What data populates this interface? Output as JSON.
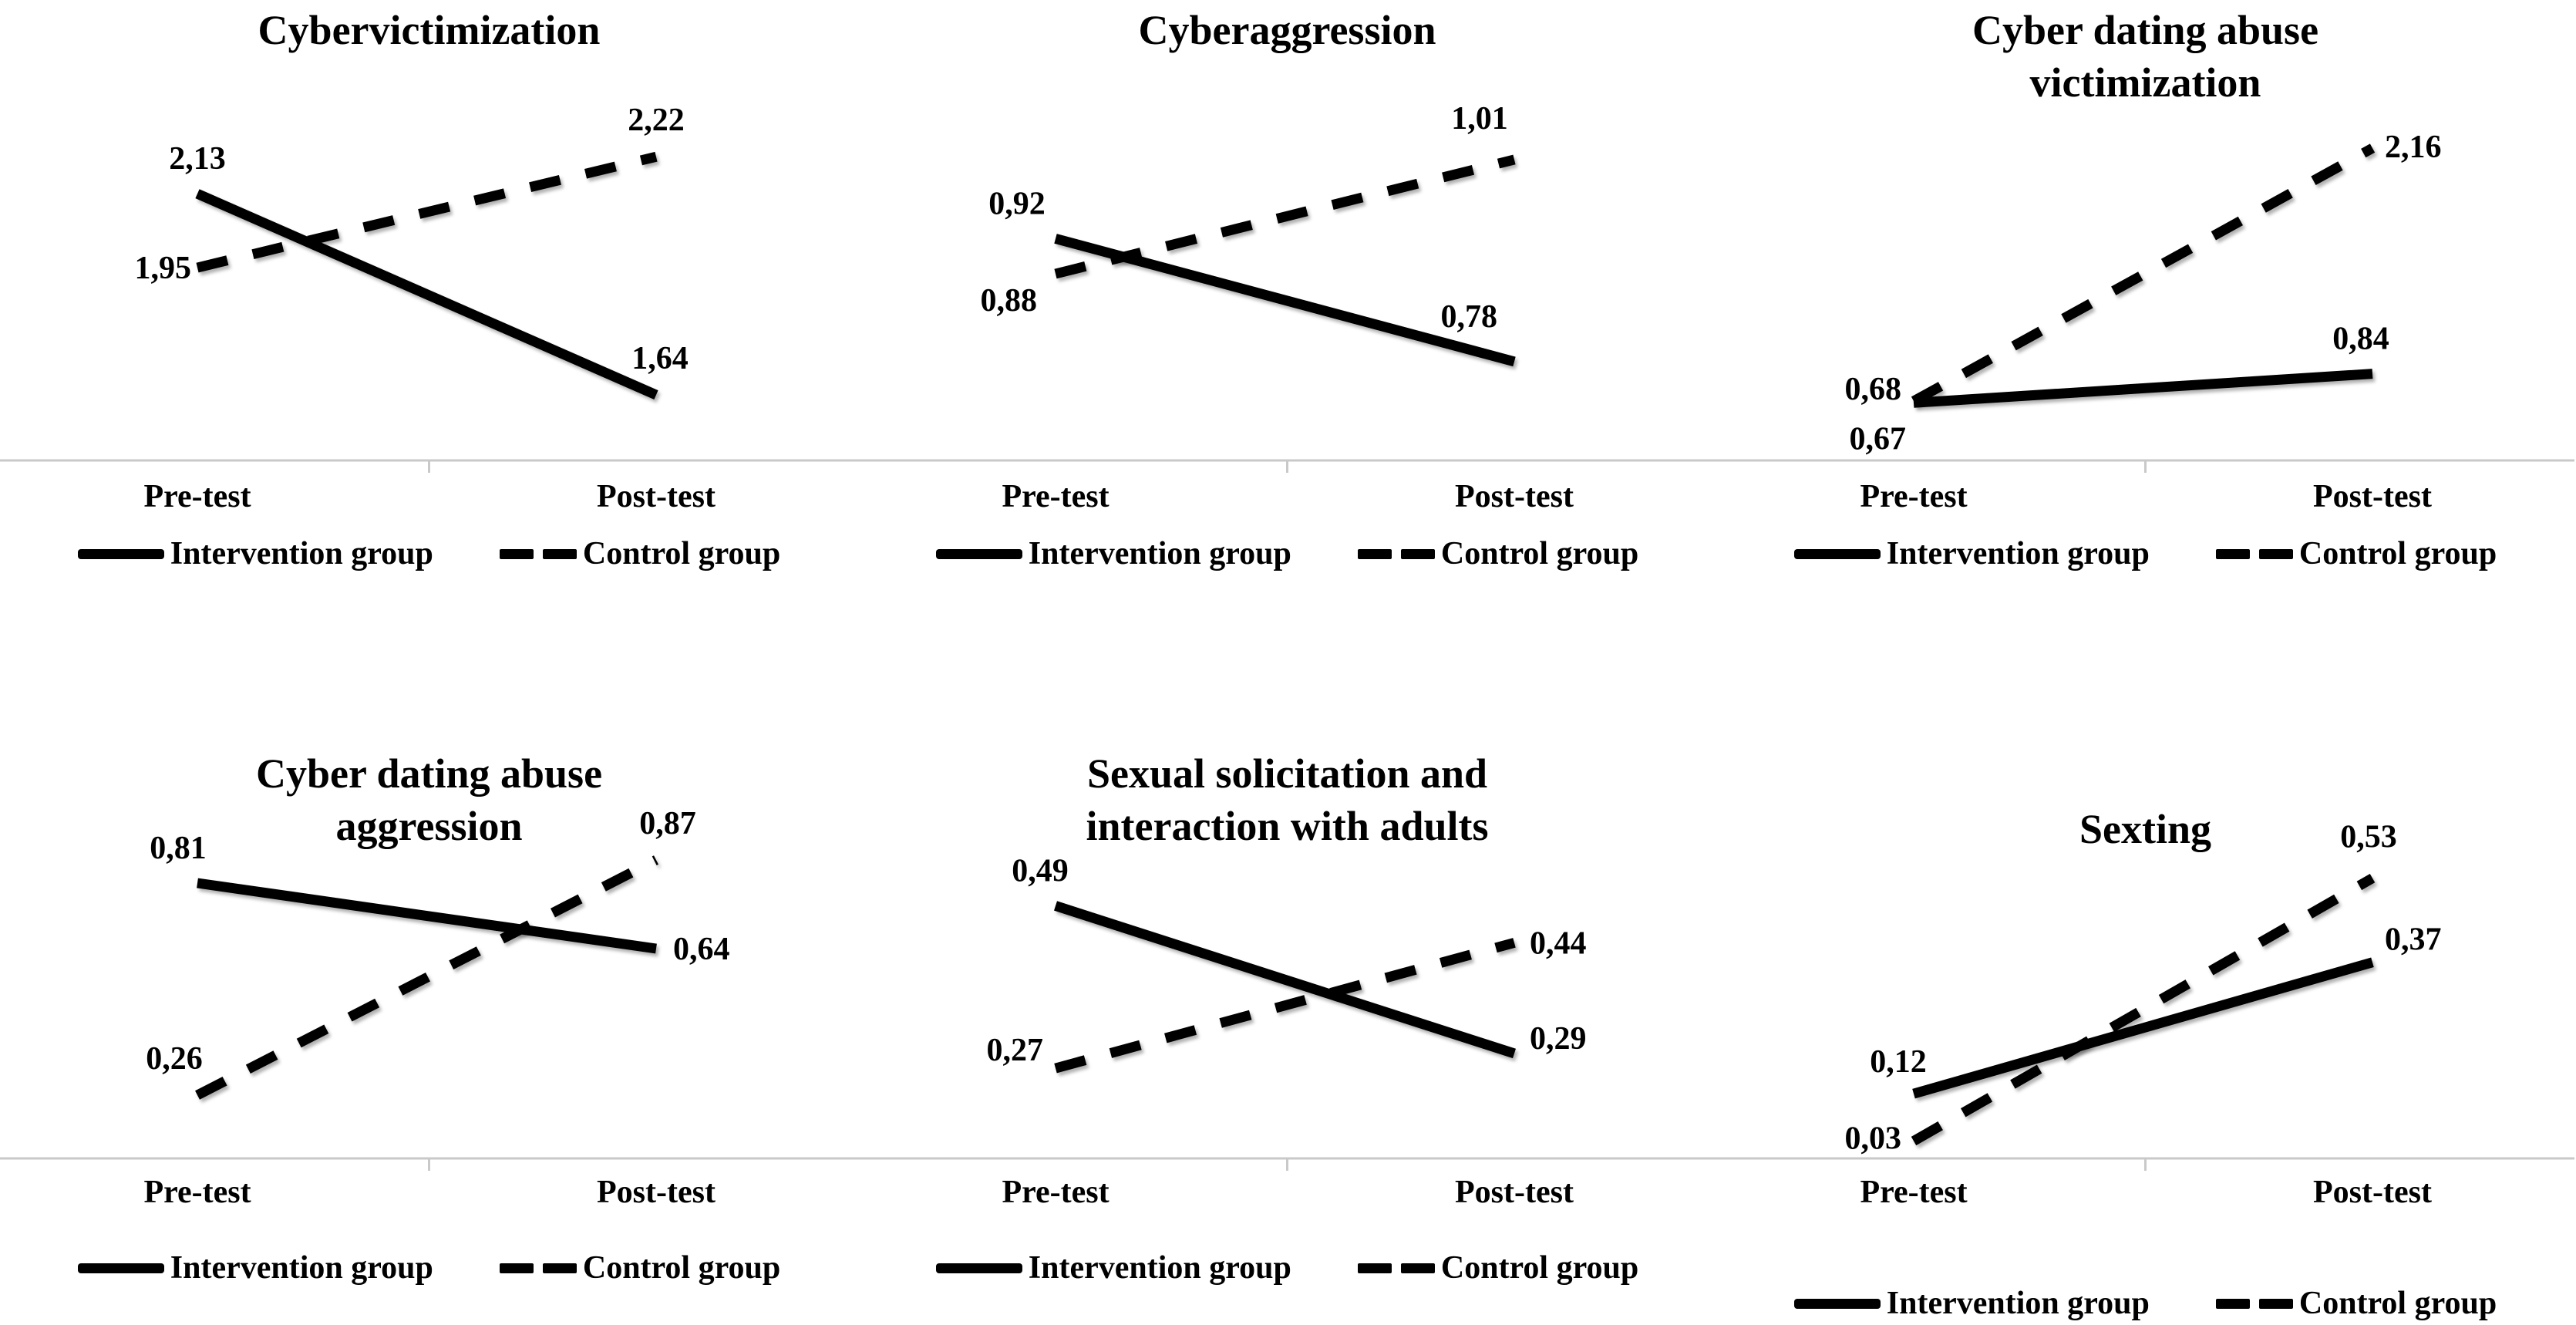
{
  "figure": {
    "background": "#ffffff",
    "text_color": "#000000"
  },
  "colors": {
    "line": "#000000",
    "axis": "#c9c9c9"
  },
  "legend": {
    "intervention_label": "Intervention group",
    "control_label": "Control group"
  },
  "axis_labels": {
    "pre": "Pre-test",
    "post": "Post-test"
  },
  "chart_data": [
    {
      "type": "line",
      "title_lines": [
        "Cybervictimization"
      ],
      "categories": [
        "Pre-test",
        "Post-test"
      ],
      "ylim": [
        1.55,
        2.32
      ],
      "grid": false,
      "legend_position": "bottom",
      "series": [
        {
          "name": "Intervention group",
          "style": "solid",
          "values": [
            2.13,
            1.64
          ],
          "labels": [
            {
              "text": "2,13",
              "anchor": "middle",
              "dx": 0,
              "dy": -32
            },
            {
              "text": "1,64",
              "anchor": "middle",
              "dx": 5,
              "dy": -34
            }
          ]
        },
        {
          "name": "Control group",
          "style": "dashed",
          "values": [
            1.95,
            2.22
          ],
          "labels": [
            {
              "text": "1,95",
              "anchor": "end",
              "dx": -8,
              "dy": 14
            },
            {
              "text": "2,22",
              "anchor": "middle",
              "dx": 0,
              "dy": -34
            }
          ]
        }
      ]
    },
    {
      "type": "line",
      "title_lines": [
        "Cyberaggression"
      ],
      "categories": [
        "Pre-test",
        "Post-test"
      ],
      "ylim": [
        0.7,
        1.06
      ],
      "grid": false,
      "legend_position": "bottom",
      "series": [
        {
          "name": "Intervention group",
          "style": "solid",
          "values": [
            0.92,
            0.78
          ],
          "labels": [
            {
              "text": "0,92",
              "anchor": "middle",
              "dx": -50,
              "dy": -32
            },
            {
              "text": "0,78",
              "anchor": "end",
              "dx": -22,
              "dy": -45
            }
          ]
        },
        {
          "name": "Control group",
          "style": "dashed",
          "values": [
            0.88,
            1.01
          ],
          "labels": [
            {
              "text": "0,88",
              "anchor": "end",
              "dx": -24,
              "dy": 48
            },
            {
              "text": "1,01",
              "anchor": "middle",
              "dx": -45,
              "dy": -40
            }
          ]
        }
      ]
    },
    {
      "type": "line",
      "title_lines": [
        "Cyber dating abuse",
        "victimization"
      ],
      "categories": [
        "Pre-test",
        "Post-test"
      ],
      "ylim": [
        0.5,
        2.35
      ],
      "grid": false,
      "legend_position": "bottom",
      "series": [
        {
          "name": "Intervention group",
          "style": "solid",
          "values": [
            0.67,
            0.84
          ],
          "labels": [
            {
              "text": "0,67",
              "anchor": "end",
              "dx": -10,
              "dy": 60
            },
            {
              "text": "0,84",
              "anchor": "middle",
              "dx": -15,
              "dy": -32
            }
          ]
        },
        {
          "name": "Control group",
          "style": "dashed",
          "values": [
            0.68,
            2.16
          ],
          "labels": [
            {
              "text": "0,68",
              "anchor": "end",
              "dx": -16,
              "dy": -2
            },
            {
              "text": "2,16",
              "anchor": "start",
              "dx": 16,
              "dy": 12
            }
          ]
        }
      ]
    },
    {
      "type": "line",
      "title_lines": [
        "Cyber dating abuse",
        "aggression"
      ],
      "categories": [
        "Pre-test",
        "Post-test"
      ],
      "ylim": [
        0.1,
        1.0
      ],
      "grid": false,
      "legend_position": "bottom",
      "series": [
        {
          "name": "Intervention group",
          "style": "solid",
          "values": [
            0.81,
            0.64
          ],
          "labels": [
            {
              "text": "0,81",
              "anchor": "middle",
              "dx": -25,
              "dy": -32
            },
            {
              "text": "0,64",
              "anchor": "start",
              "dx": 22,
              "dy": 14
            }
          ]
        },
        {
          "name": "Control group",
          "style": "dashed",
          "values": [
            0.26,
            0.87
          ],
          "labels": [
            {
              "text": "0,26",
              "anchor": "middle",
              "dx": -30,
              "dy": -34
            },
            {
              "text": "0,87",
              "anchor": "middle",
              "dx": 15,
              "dy": -34
            }
          ]
        }
      ]
    },
    {
      "type": "line",
      "title_lines": [
        "Sexual solicitation and",
        "interaction with adults"
      ],
      "categories": [
        "Pre-test",
        "Post-test"
      ],
      "ylim": [
        0.15,
        0.62
      ],
      "grid": false,
      "legend_position": "bottom",
      "series": [
        {
          "name": "Intervention group",
          "style": "solid",
          "values": [
            0.49,
            0.29
          ],
          "labels": [
            {
              "text": "0,49",
              "anchor": "middle",
              "dx": -20,
              "dy": -32
            },
            {
              "text": "0,29",
              "anchor": "start",
              "dx": 20,
              "dy": -6
            }
          ]
        },
        {
          "name": "Control group",
          "style": "dashed",
          "values": [
            0.27,
            0.44
          ],
          "labels": [
            {
              "text": "0,27",
              "anchor": "end",
              "dx": -16,
              "dy": -10
            },
            {
              "text": "0,44",
              "anchor": "start",
              "dx": 20,
              "dy": 14
            }
          ]
        }
      ]
    },
    {
      "type": "line",
      "title_lines": [
        "Sexting"
      ],
      "categories": [
        "Pre-test",
        "Post-test"
      ],
      "ylim": [
        0.0,
        0.66
      ],
      "grid": false,
      "legend_position": "bottom",
      "series": [
        {
          "name": "Intervention group",
          "style": "solid",
          "values": [
            0.12,
            0.37
          ],
          "labels": [
            {
              "text": "0,12",
              "anchor": "middle",
              "dx": -20,
              "dy": -28
            },
            {
              "text": "0,37",
              "anchor": "start",
              "dx": 16,
              "dy": -16
            }
          ]
        },
        {
          "name": "Control group",
          "style": "dashed",
          "values": [
            0.03,
            0.53
          ],
          "labels": [
            {
              "text": "0,03",
              "anchor": "end",
              "dx": -16,
              "dy": 10
            },
            {
              "text": "0,53",
              "anchor": "middle",
              "dx": -5,
              "dy": -40
            }
          ]
        }
      ]
    }
  ]
}
